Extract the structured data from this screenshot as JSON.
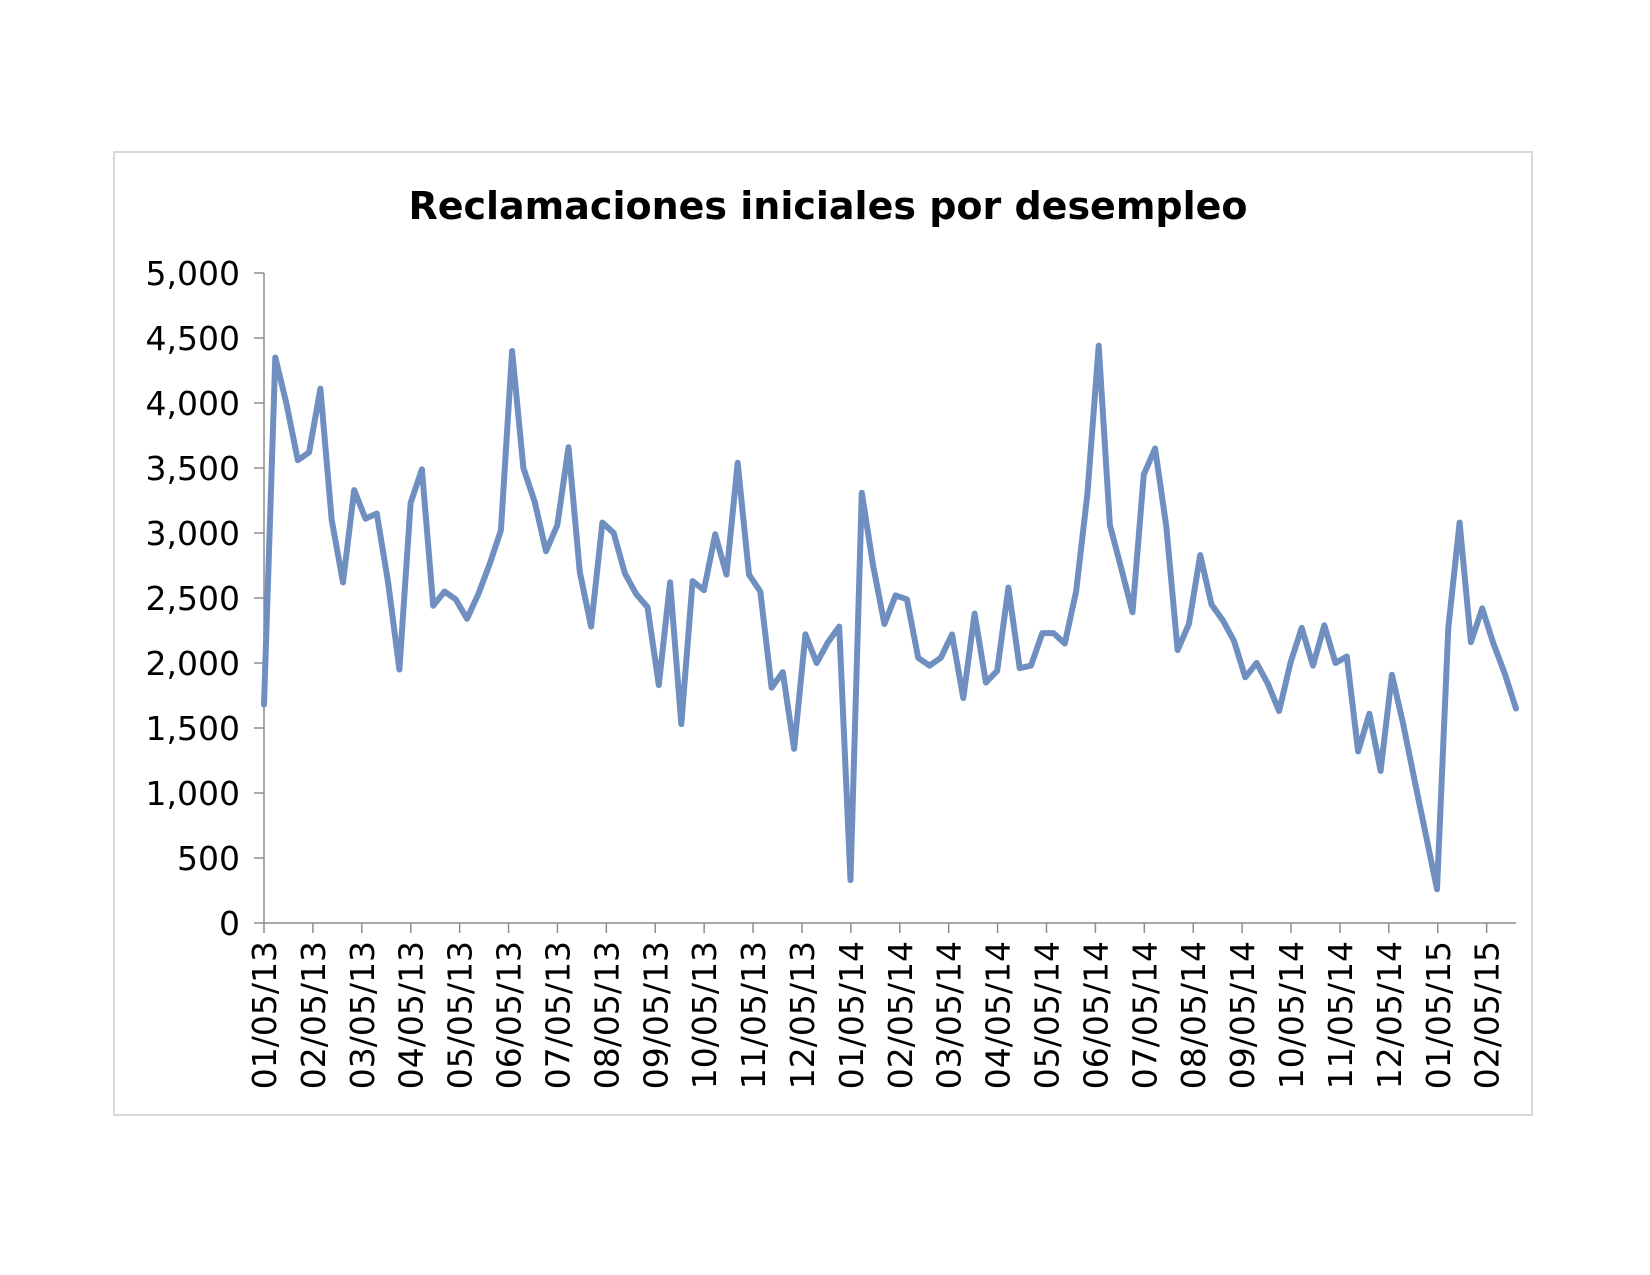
{
  "chart_data": {
    "type": "line",
    "title": "Reclamaciones iniciales por desempleo",
    "xlabel": "",
    "ylabel": "",
    "ylim": [
      0,
      5000
    ],
    "yticks": [
      0,
      500,
      1000,
      1500,
      2000,
      2500,
      3000,
      3500,
      4000,
      4500,
      5000
    ],
    "ytick_labels": [
      "0",
      "500",
      "1,000",
      "1,500",
      "2,000",
      "2,500",
      "3,000",
      "3,500",
      "4,000",
      "4,500",
      "5,000"
    ],
    "x_tick_labels": [
      "01/05/13",
      "02/05/13",
      "03/05/13",
      "04/05/13",
      "05/05/13",
      "06/05/13",
      "07/05/13",
      "08/05/13",
      "09/05/13",
      "10/05/13",
      "11/05/13",
      "12/05/13",
      "01/05/14",
      "02/05/14",
      "03/05/14",
      "04/05/14",
      "05/05/14",
      "06/05/14",
      "07/05/14",
      "08/05/14",
      "09/05/14",
      "10/05/14",
      "11/05/14",
      "12/05/14",
      "01/05/15",
      "02/05/15"
    ],
    "grid": false,
    "legend": "none",
    "series_color": "#6f8fc1",
    "series": [
      {
        "values": [
          1680,
          4350,
          3990,
          3560,
          3620,
          4110,
          3100,
          2620,
          3330,
          3110,
          3150,
          2620,
          1950,
          3230,
          3490,
          2440,
          2550,
          2490,
          2340,
          2530,
          2760,
          3020,
          4400,
          3500,
          3240,
          2860,
          3060,
          3660,
          2700,
          2280,
          3080,
          3000,
          2690,
          2530,
          2430,
          1830,
          2620,
          1530,
          2630,
          2560,
          2990,
          2680,
          3540,
          2680,
          2550,
          1810,
          1930,
          1340,
          2220,
          2000,
          2160,
          2280,
          330,
          3310,
          2750,
          2300,
          2520,
          2490,
          2040,
          1980,
          2040,
          2220,
          1730,
          2380,
          1850,
          1940,
          2580,
          1960,
          1980,
          2230,
          2230,
          2150,
          2550,
          3300,
          4440,
          3060,
          2730,
          2390,
          3450,
          3650,
          3050,
          2100,
          2300,
          2830,
          2450,
          2330,
          2170,
          1890,
          2000,
          1840,
          1630,
          2000,
          2270,
          1980,
          2290,
          2000,
          2050,
          1320,
          1610,
          1170,
          1910,
          1530,
          1100,
          680,
          260,
          2270,
          3080,
          2160,
          2420,
          2150,
          1920,
          1650
        ]
      }
    ]
  }
}
